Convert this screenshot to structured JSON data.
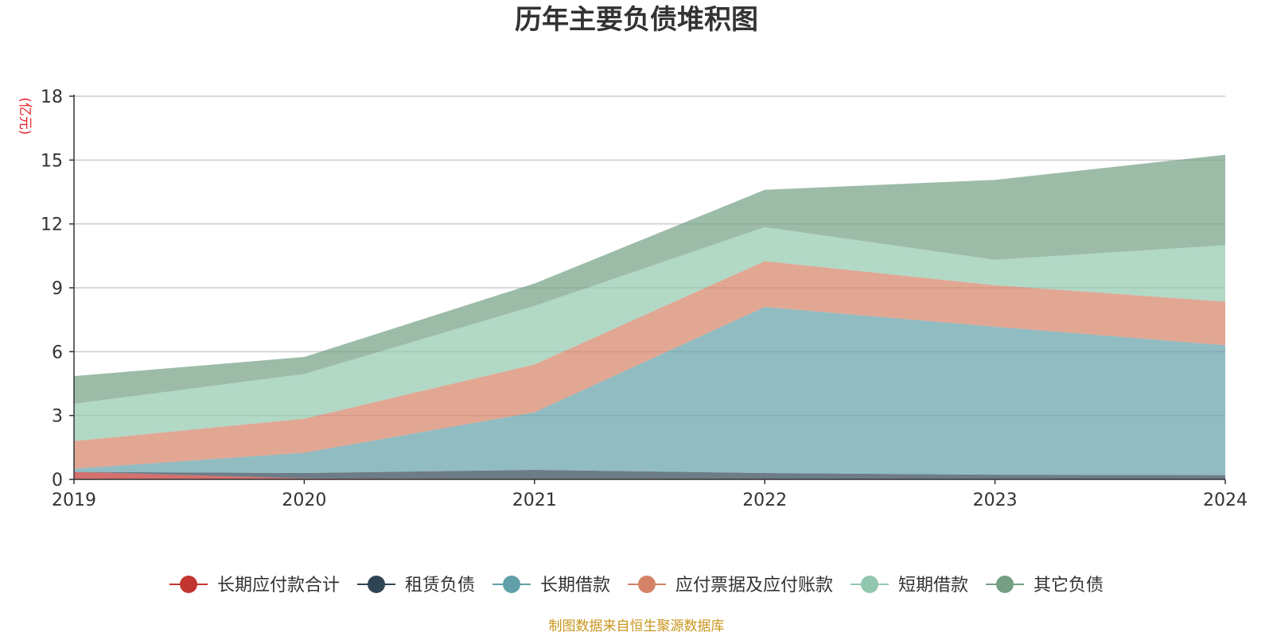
{
  "chart_data": {
    "type": "area",
    "title": "历年主要负债堆积图",
    "ylabel": "(亿元)",
    "x": [
      "2019",
      "2020",
      "2021",
      "2022",
      "2023",
      "2024"
    ],
    "ylim": [
      0,
      18
    ],
    "yticks": [
      0,
      3,
      6,
      9,
      12,
      15,
      18
    ],
    "stacked": true,
    "grid": true,
    "legend_position": "bottom",
    "series": [
      {
        "name": "长期应付款合计",
        "color": "#c23531",
        "values": [
          0.35,
          0.05,
          0.0,
          0.0,
          0.0,
          0.0
        ]
      },
      {
        "name": "租赁负债",
        "color": "#2f4554",
        "values": [
          0.0,
          0.25,
          0.45,
          0.3,
          0.22,
          0.2
        ]
      },
      {
        "name": "长期借款",
        "color": "#61a0a8",
        "values": [
          0.15,
          0.95,
          2.7,
          7.8,
          6.95,
          6.1
        ]
      },
      {
        "name": "应付票据及应付账款",
        "color": "#d48265",
        "values": [
          1.3,
          1.6,
          2.25,
          2.15,
          1.95,
          2.05
        ]
      },
      {
        "name": "短期借款",
        "color": "#91c7ae",
        "values": [
          1.75,
          2.1,
          2.75,
          1.6,
          1.2,
          2.65
        ]
      },
      {
        "name": "其它负债",
        "color": "#749f83",
        "values": [
          1.3,
          0.8,
          1.05,
          1.75,
          3.75,
          4.25
        ]
      }
    ]
  },
  "source_note": "制图数据来自恒生聚源数据库"
}
